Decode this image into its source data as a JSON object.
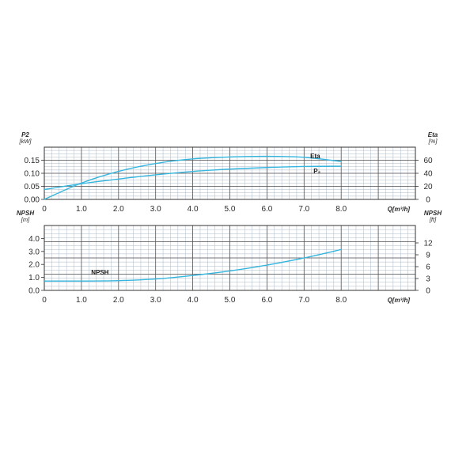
{
  "colors": {
    "curve": "#35b6de",
    "grid_minor": "#aab8c8",
    "grid_major": "#555555",
    "frame": "#333333"
  },
  "chart_data": [
    {
      "type": "line",
      "x_axis": {
        "label": "Q[m³/h]",
        "range": [
          0,
          10
        ],
        "ticks": [
          0,
          1,
          2,
          3,
          4,
          5,
          6,
          7,
          8
        ],
        "tick_labels": [
          "0",
          "1.0",
          "2.0",
          "3.0",
          "4.0",
          "5.0",
          "6.0",
          "7.0",
          "8.0"
        ]
      },
      "y_left": {
        "label": "P2",
        "unit": "[kW]",
        "range": [
          0,
          0.2
        ],
        "ticks": [
          0,
          0.05,
          0.1,
          0.15
        ],
        "tick_labels": [
          "0.00",
          "0.05",
          "0.10",
          "0.15"
        ]
      },
      "y_right": {
        "label": "Eta",
        "unit": "[%]",
        "range": [
          0,
          80
        ],
        "ticks": [
          0,
          20,
          40,
          60
        ],
        "tick_labels": [
          "0",
          "20",
          "40",
          "60"
        ]
      },
      "series": [
        {
          "name": "P₂",
          "axis": "left",
          "x": [
            0,
            1,
            2,
            3,
            4,
            5,
            6,
            7,
            8
          ],
          "y": [
            0.038,
            0.06,
            0.078,
            0.094,
            0.107,
            0.116,
            0.122,
            0.126,
            0.127
          ]
        },
        {
          "name": "Eta",
          "axis": "right",
          "x": [
            0,
            1,
            2,
            3,
            4,
            5,
            6,
            7,
            8
          ],
          "y": [
            0,
            25,
            43,
            55,
            62,
            65,
            66,
            64.5,
            58
          ]
        }
      ]
    },
    {
      "type": "line",
      "x_axis": {
        "label": "Q[m³/h]",
        "range": [
          0,
          10
        ],
        "ticks": [
          0,
          1,
          2,
          3,
          4,
          5,
          6,
          7,
          8
        ],
        "tick_labels": [
          "0",
          "1.0",
          "2.0",
          "3.0",
          "4.0",
          "5.0",
          "6.0",
          "7.0",
          "8.0"
        ]
      },
      "y_left": {
        "label": "NPSH",
        "unit": "[m]",
        "range": [
          0,
          5
        ],
        "ticks": [
          0,
          1,
          2,
          3,
          4
        ],
        "tick_labels": [
          "0.0",
          "1.0",
          "2.0",
          "3.0",
          "4.0"
        ]
      },
      "y_right": {
        "label": "NPSH",
        "unit": "[ft]",
        "range": [
          0,
          16.4
        ],
        "ticks": [
          0,
          3,
          6,
          9,
          12
        ],
        "tick_labels": [
          "0",
          "3",
          "6",
          "9",
          "12"
        ]
      },
      "series": [
        {
          "name": "NPSH",
          "axis": "left",
          "x": [
            0,
            1,
            2,
            3,
            4,
            5,
            6,
            7,
            8
          ],
          "y": [
            0.72,
            0.72,
            0.75,
            0.88,
            1.15,
            1.5,
            1.95,
            2.5,
            3.15
          ]
        }
      ]
    }
  ]
}
